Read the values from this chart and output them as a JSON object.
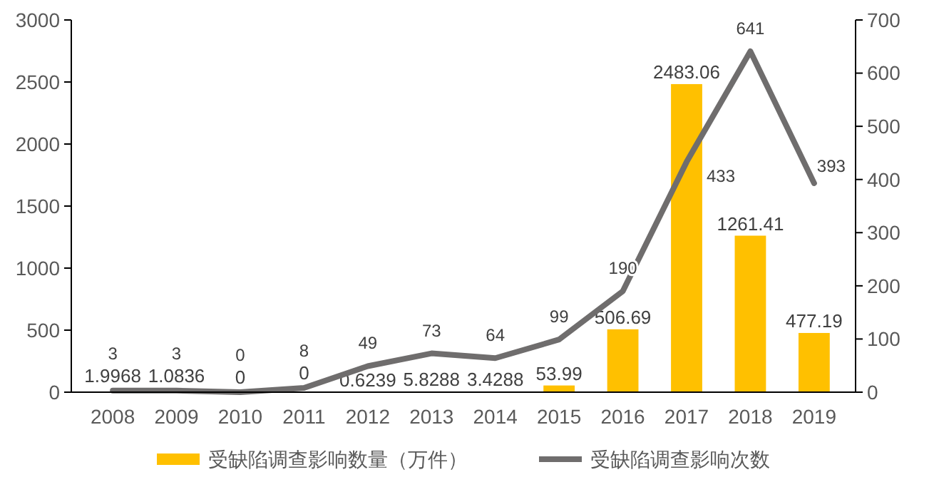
{
  "chart_data": {
    "type": "bar",
    "categories": [
      "2008",
      "2009",
      "2010",
      "2011",
      "2012",
      "2013",
      "2014",
      "2015",
      "2016",
      "2017",
      "2018",
      "2019"
    ],
    "series": [
      {
        "name": "受缺陷调查影响数量（万件）",
        "type": "bar",
        "color": "#ffc000",
        "values": [
          1.9968,
          1.0836,
          0,
          0,
          0.6239,
          5.8288,
          3.4288,
          53.99,
          506.69,
          2483.06,
          1261.41,
          477.19
        ]
      },
      {
        "name": "受缺陷调查影响次数",
        "type": "line",
        "axis": "y2",
        "color": "#6f6d6d",
        "values": [
          3,
          3,
          0,
          8,
          49,
          73,
          64,
          99,
          190,
          433,
          641,
          393
        ]
      }
    ],
    "ylim": [
      0,
      3000
    ],
    "yticks": [
      0,
      500,
      1000,
      1500,
      2000,
      2500,
      3000
    ],
    "y2lim": [
      0,
      700
    ],
    "y2ticks": [
      0,
      100,
      200,
      300,
      400,
      500,
      600,
      700
    ],
    "data_labels": true,
    "legend": "bottom",
    "grid": false,
    "marker": "none",
    "line_style": "solid"
  }
}
